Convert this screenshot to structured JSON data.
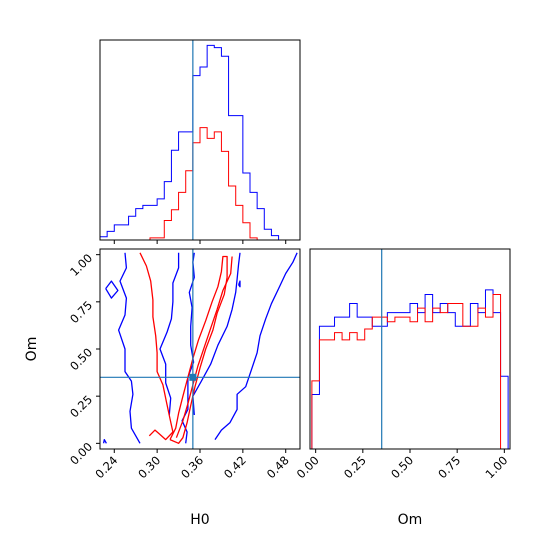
{
  "chart_data": [
    {
      "type": "histogram",
      "panel": "H0 marginal",
      "x_ticks": [
        "0.24",
        "0.30",
        "0.36",
        "0.42",
        "0.48"
      ],
      "xlim": [
        0.22,
        0.5
      ],
      "truth": 0.35,
      "bin_edges": [
        0.22,
        0.23,
        0.24,
        0.25,
        0.26,
        0.27,
        0.28,
        0.29,
        0.3,
        0.31,
        0.32,
        0.33,
        0.34,
        0.35,
        0.36,
        0.37,
        0.38,
        0.39,
        0.4,
        0.41,
        0.42,
        0.43,
        0.44,
        0.45,
        0.46,
        0.47,
        0.48,
        0.49,
        0.5
      ],
      "series": [
        {
          "color": "#0000ff",
          "counts": [
            3,
            8,
            14,
            14,
            22,
            29,
            32,
            32,
            38,
            54,
            83,
            100,
            100,
            152,
            160,
            180,
            178,
            170,
            115,
            115,
            62,
            44,
            29,
            10,
            4,
            0,
            0,
            0
          ]
        },
        {
          "color": "#ff0000",
          "counts": [
            0,
            0,
            0,
            0,
            0,
            0,
            0,
            2,
            2,
            18,
            28,
            44,
            64,
            90,
            104,
            94,
            100,
            82,
            50,
            32,
            16,
            2,
            0,
            0,
            0,
            0,
            0,
            0
          ]
        }
      ],
      "ymax": 185
    },
    {
      "type": "contour",
      "panel": "H0 vs Om",
      "x_label": "H0",
      "y_label": "Om",
      "x_ticks": [
        "0.24",
        "0.30",
        "0.36",
        "0.42",
        "0.48"
      ],
      "y_ticks": [
        "0.00",
        "0.25",
        "0.50",
        "0.75",
        "1.00"
      ],
      "xlim": [
        0.22,
        0.5
      ],
      "ylim": [
        -0.03,
        1.03
      ],
      "truth": {
        "x": 0.35,
        "y": 0.35
      },
      "series": [
        {
          "color": "#0000ff",
          "contours": [
            [
              [
                0.225,
                0.0
              ],
              [
                0.226,
                0.02
              ],
              [
                0.229,
                0.0
              ]
            ],
            [
              [
                0.228,
                0.82
              ],
              [
                0.236,
                0.86
              ],
              [
                0.245,
                0.81
              ],
              [
                0.236,
                0.77
              ],
              [
                0.228,
                0.82
              ]
            ],
            [
              [
                0.255,
                1.01
              ],
              [
                0.257,
                0.93
              ],
              [
                0.248,
                0.86
              ],
              [
                0.257,
                0.77
              ],
              [
                0.255,
                0.68
              ],
              [
                0.246,
                0.6
              ],
              [
                0.255,
                0.5
              ],
              [
                0.255,
                0.38
              ],
              [
                0.264,
                0.33
              ],
              [
                0.266,
                0.26
              ],
              [
                0.262,
                0.17
              ],
              [
                0.264,
                0.08
              ],
              [
                0.276,
                0.0
              ]
            ],
            [
              [
                0.317,
                0.15
              ],
              [
                0.319,
                0.24
              ],
              [
                0.312,
                0.32
              ],
              [
                0.312,
                0.42
              ],
              [
                0.304,
                0.5
              ],
              [
                0.314,
                0.59
              ],
              [
                0.32,
                0.66
              ],
              [
                0.322,
                0.75
              ],
              [
                0.322,
                0.85
              ],
              [
                0.33,
                0.93
              ],
              [
                0.33,
                1.01
              ]
            ],
            [
              [
                0.34,
                0.0
              ],
              [
                0.342,
                0.06
              ],
              [
                0.335,
                0.12
              ],
              [
                0.343,
                0.18
              ],
              [
                0.343,
                0.27
              ],
              [
                0.343,
                0.35
              ],
              [
                0.351,
                0.43
              ],
              [
                0.347,
                0.52
              ],
              [
                0.347,
                0.62
              ],
              [
                0.349,
                0.72
              ],
              [
                0.345,
                0.8
              ],
              [
                0.352,
                0.88
              ],
              [
                0.35,
                0.96
              ],
              [
                0.352,
                1.01
              ]
            ],
            [
              [
                0.352,
                0.15
              ],
              [
                0.35,
                0.25
              ],
              [
                0.362,
                0.33
              ],
              [
                0.375,
                0.42
              ],
              [
                0.385,
                0.52
              ],
              [
                0.398,
                0.62
              ],
              [
                0.405,
                0.71
              ],
              [
                0.41,
                0.8
              ],
              [
                0.412,
                0.87
              ],
              [
                0.414,
                0.95
              ],
              [
                0.416,
                1.01
              ]
            ],
            [
              [
                0.414,
                0.84
              ],
              [
                0.416,
                0.86
              ],
              [
                0.416,
                0.83
              ],
              [
                0.414,
                0.84
              ]
            ],
            [
              [
                0.381,
                0.02
              ],
              [
                0.39,
                0.07
              ],
              [
                0.402,
                0.11
              ],
              [
                0.412,
                0.18
              ],
              [
                0.412,
                0.26
              ],
              [
                0.424,
                0.3
              ],
              [
                0.432,
                0.39
              ],
              [
                0.44,
                0.48
              ],
              [
                0.444,
                0.57
              ],
              [
                0.452,
                0.66
              ],
              [
                0.46,
                0.74
              ],
              [
                0.47,
                0.82
              ],
              [
                0.48,
                0.9
              ],
              [
                0.49,
                0.96
              ],
              [
                0.496,
                1.01
              ]
            ]
          ]
        },
        {
          "color": "#ff0000",
          "contours": [
            [
              [
                0.276,
                1.01
              ],
              [
                0.285,
                0.94
              ],
              [
                0.291,
                0.86
              ],
              [
                0.294,
                0.76
              ],
              [
                0.294,
                0.67
              ],
              [
                0.298,
                0.57
              ],
              [
                0.3,
                0.48
              ],
              [
                0.3,
                0.38
              ],
              [
                0.308,
                0.31
              ],
              [
                0.313,
                0.22
              ],
              [
                0.318,
                0.13
              ],
              [
                0.322,
                0.06
              ],
              [
                0.312,
                0.02
              ],
              [
                0.303,
                0.05
              ],
              [
                0.297,
                0.07
              ],
              [
                0.289,
                0.04
              ]
            ],
            [
              [
                0.318,
                0.02
              ],
              [
                0.326,
                0.08
              ],
              [
                0.33,
                0.16
              ],
              [
                0.336,
                0.25
              ],
              [
                0.343,
                0.35
              ],
              [
                0.35,
                0.45
              ],
              [
                0.358,
                0.55
              ],
              [
                0.368,
                0.65
              ],
              [
                0.377,
                0.75
              ],
              [
                0.385,
                0.83
              ],
              [
                0.39,
                0.91
              ],
              [
                0.392,
                0.99
              ],
              [
                0.398,
                0.99
              ],
              [
                0.398,
                0.88
              ],
              [
                0.394,
                0.79
              ],
              [
                0.384,
                0.69
              ],
              [
                0.378,
                0.6
              ],
              [
                0.368,
                0.5
              ],
              [
                0.36,
                0.4
              ],
              [
                0.353,
                0.3
              ],
              [
                0.347,
                0.2
              ],
              [
                0.342,
                0.11
              ],
              [
                0.336,
                0.03
              ],
              [
                0.33,
                0.0
              ],
              [
                0.318,
                0.02
              ]
            ],
            [
              [
                0.327,
                0.03
              ],
              [
                0.336,
                0.12
              ],
              [
                0.343,
                0.21
              ],
              [
                0.35,
                0.31
              ],
              [
                0.357,
                0.41
              ],
              [
                0.366,
                0.51
              ],
              [
                0.375,
                0.61
              ],
              [
                0.384,
                0.71
              ],
              [
                0.392,
                0.81
              ],
              [
                0.403,
                0.9
              ],
              [
                0.405,
                0.99
              ]
            ]
          ]
        }
      ]
    },
    {
      "type": "histogram",
      "panel": "Om marginal",
      "x_label": "Om",
      "x_ticks": [
        "0.00",
        "0.25",
        "0.50",
        "0.75",
        "1.00"
      ],
      "xlim": [
        -0.03,
        1.03
      ],
      "truth": 0.35,
      "bin_edges": [
        -0.02,
        0.02,
        0.06,
        0.1,
        0.14,
        0.18,
        0.22,
        0.26,
        0.3,
        0.34,
        0.38,
        0.42,
        0.46,
        0.5,
        0.54,
        0.58,
        0.62,
        0.66,
        0.7,
        0.74,
        0.78,
        0.82,
        0.86,
        0.9,
        0.94,
        0.98,
        1.02
      ],
      "series": [
        {
          "color": "#0000ff",
          "counts": [
            60,
            135,
            135,
            145,
            145,
            160,
            145,
            145,
            135,
            135,
            150,
            150,
            150,
            160,
            150,
            170,
            150,
            160,
            150,
            135,
            135,
            160,
            150,
            175,
            150,
            80
          ]
        },
        {
          "color": "#ff0000",
          "counts": [
            75,
            120,
            120,
            128,
            120,
            128,
            120,
            132,
            145,
            145,
            140,
            145,
            145,
            140,
            155,
            140,
            155,
            150,
            160,
            160,
            135,
            135,
            155,
            145,
            170,
            0
          ]
        }
      ],
      "ymax": 220
    }
  ],
  "labels": {
    "x_h0": "H0",
    "x_om": "Om",
    "y_om": "Om"
  }
}
